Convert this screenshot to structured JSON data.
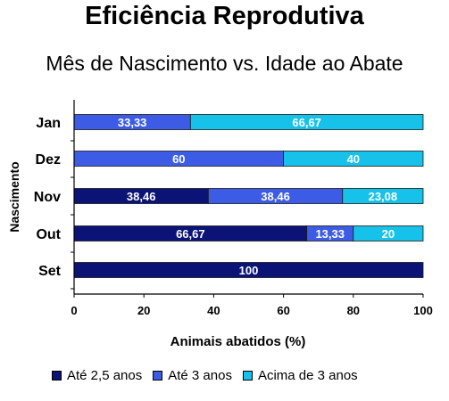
{
  "chart_data": {
    "type": "bar",
    "orientation": "horizontal",
    "stacked": true,
    "title": "Eficiência Reprodutiva",
    "subtitle": "Mês de Nascimento vs. Idade ao Abate",
    "xlabel": "Animais abatidos (%)",
    "ylabel": "Nascimento",
    "xlim": [
      0,
      100
    ],
    "xticks": [
      "0",
      "20",
      "40",
      "60",
      "80",
      "100"
    ],
    "grid": false,
    "legend_position": "bottom",
    "categories": [
      "Jan",
      "Dez",
      "Nov",
      "Out",
      "Set"
    ],
    "series": [
      {
        "name": "Até 2,5 anos",
        "color": "#0b1377",
        "values": [
          0,
          0,
          38.46,
          66.67,
          100
        ],
        "labels": [
          "",
          "",
          "38,46",
          "66,67",
          "100"
        ]
      },
      {
        "name": "Até 3 anos",
        "color": "#3d5ce6",
        "values": [
          33.33,
          60,
          38.46,
          13.33,
          0
        ],
        "labels": [
          "33,33",
          "60",
          "38,46",
          "13,33",
          ""
        ]
      },
      {
        "name": "Acima de 3 anos",
        "color": "#17c2ea",
        "values": [
          66.67,
          40,
          23.08,
          20,
          0
        ],
        "labels": [
          "66,67",
          "40",
          "23,08",
          "20",
          ""
        ]
      }
    ]
  }
}
